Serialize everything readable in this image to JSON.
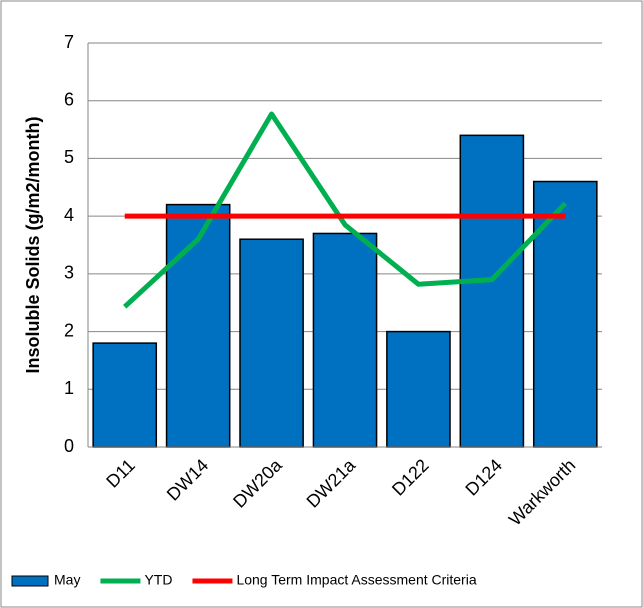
{
  "chart_data": {
    "type": "bar",
    "y_label": "Insoluble Solids (g/m2/month)",
    "categories": [
      "D11",
      "DW14",
      "DW20a",
      "DW21a",
      "D122",
      "D124",
      "Warkworth"
    ],
    "series": [
      {
        "name": "May",
        "type": "bar",
        "color": "#0070c0",
        "values": [
          1.8,
          4.2,
          3.6,
          3.7,
          2.0,
          5.4,
          4.6
        ]
      },
      {
        "name": "YTD",
        "type": "line",
        "color": "#00b050",
        "values": [
          2.43,
          3.6,
          5.77,
          3.85,
          2.82,
          2.9,
          4.22
        ]
      },
      {
        "name": "Long Term Impact Assessment Criteria",
        "type": "line",
        "color": "#ff0000",
        "values": [
          4,
          4,
          4,
          4,
          4,
          4,
          4
        ]
      }
    ],
    "ylim": [
      0,
      7
    ],
    "yticks": [
      0,
      1,
      2,
      3,
      4,
      5,
      6,
      7
    ],
    "grid": true,
    "legend": "bottom"
  }
}
